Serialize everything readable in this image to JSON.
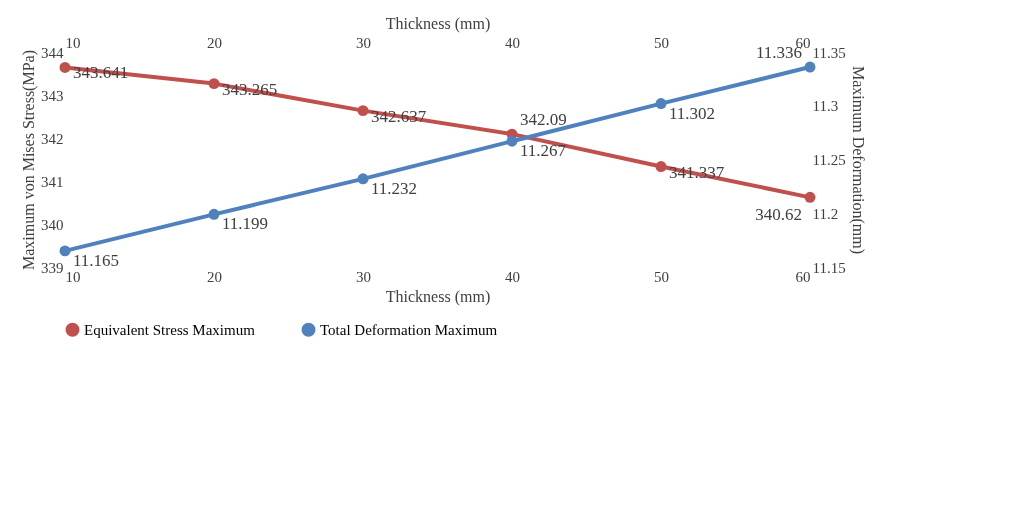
{
  "chart_data": {
    "type": "line",
    "xlabel": "Thickness (mm)",
    "x2label": "Thickness (mm)",
    "ylabel": "Maximum von Mises Stress(MPa)",
    "y2label": "Maximum Deformation(mm)",
    "x": [
      10,
      20,
      30,
      40,
      50,
      60
    ],
    "xlim": [
      10,
      60
    ],
    "xticks": [
      10,
      20,
      30,
      40,
      50,
      60
    ],
    "x2lim": [
      10,
      60
    ],
    "x2ticks": [
      10,
      20,
      30,
      40,
      50,
      60
    ],
    "ylim": [
      339,
      344
    ],
    "yticks": [
      339,
      340,
      341,
      342,
      343,
      344
    ],
    "y2lim": [
      11.15,
      11.35
    ],
    "y2ticks": [
      11.15,
      {
        "value": 11.2,
        "label": "11.2"
      },
      11.25,
      {
        "value": 11.3,
        "label": "11.3"
      },
      11.35
    ],
    "series": [
      {
        "name": "Equivalent Stress Maximum",
        "color": "#c0504d",
        "values": [
          343.641,
          343.265,
          342.637,
          342.09,
          341.337,
          340.62
        ]
      },
      {
        "name": "Total Deformation Maximum",
        "color": "#4f81bd",
        "values": [
          11.165,
          11.199,
          11.232,
          11.267,
          11.302,
          11.336
        ],
        "axis": "y2"
      }
    ],
    "data_labels": true,
    "marker": "circle",
    "line_style": "solid",
    "grid": false,
    "legend": "bottom"
  }
}
